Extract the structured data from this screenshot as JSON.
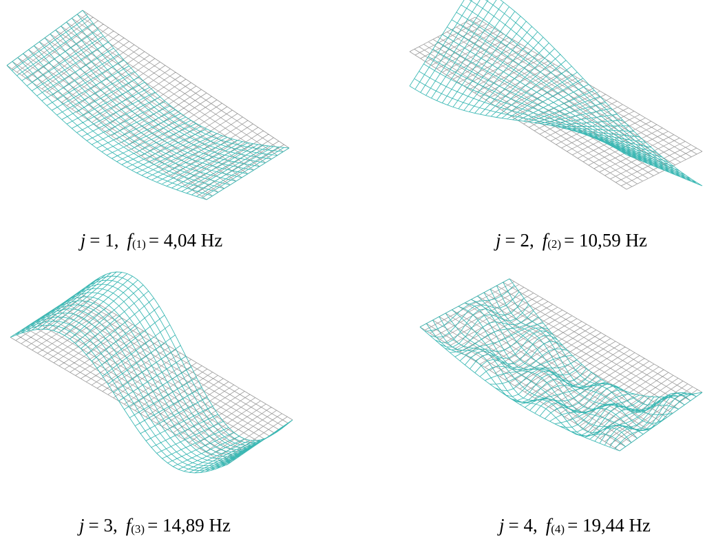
{
  "panels": [
    {
      "j_label": "j",
      "j_value": "= 1,",
      "f_label": "f",
      "f_index": "(1)",
      "f_value": "= 4,04 Hz"
    },
    {
      "j_label": "j",
      "j_value": "= 2,",
      "f_label": "f",
      "f_index": "(2)",
      "f_value": "= 10,59 Hz"
    },
    {
      "j_label": "j",
      "j_value": "= 3,",
      "f_label": "f",
      "f_index": "(3)",
      "f_value": "= 14,89 Hz"
    },
    {
      "j_label": "j",
      "j_value": "= 4,",
      "f_label": "f",
      "f_index": "(4)",
      "f_value": "= 19,44 Hz"
    }
  ]
}
